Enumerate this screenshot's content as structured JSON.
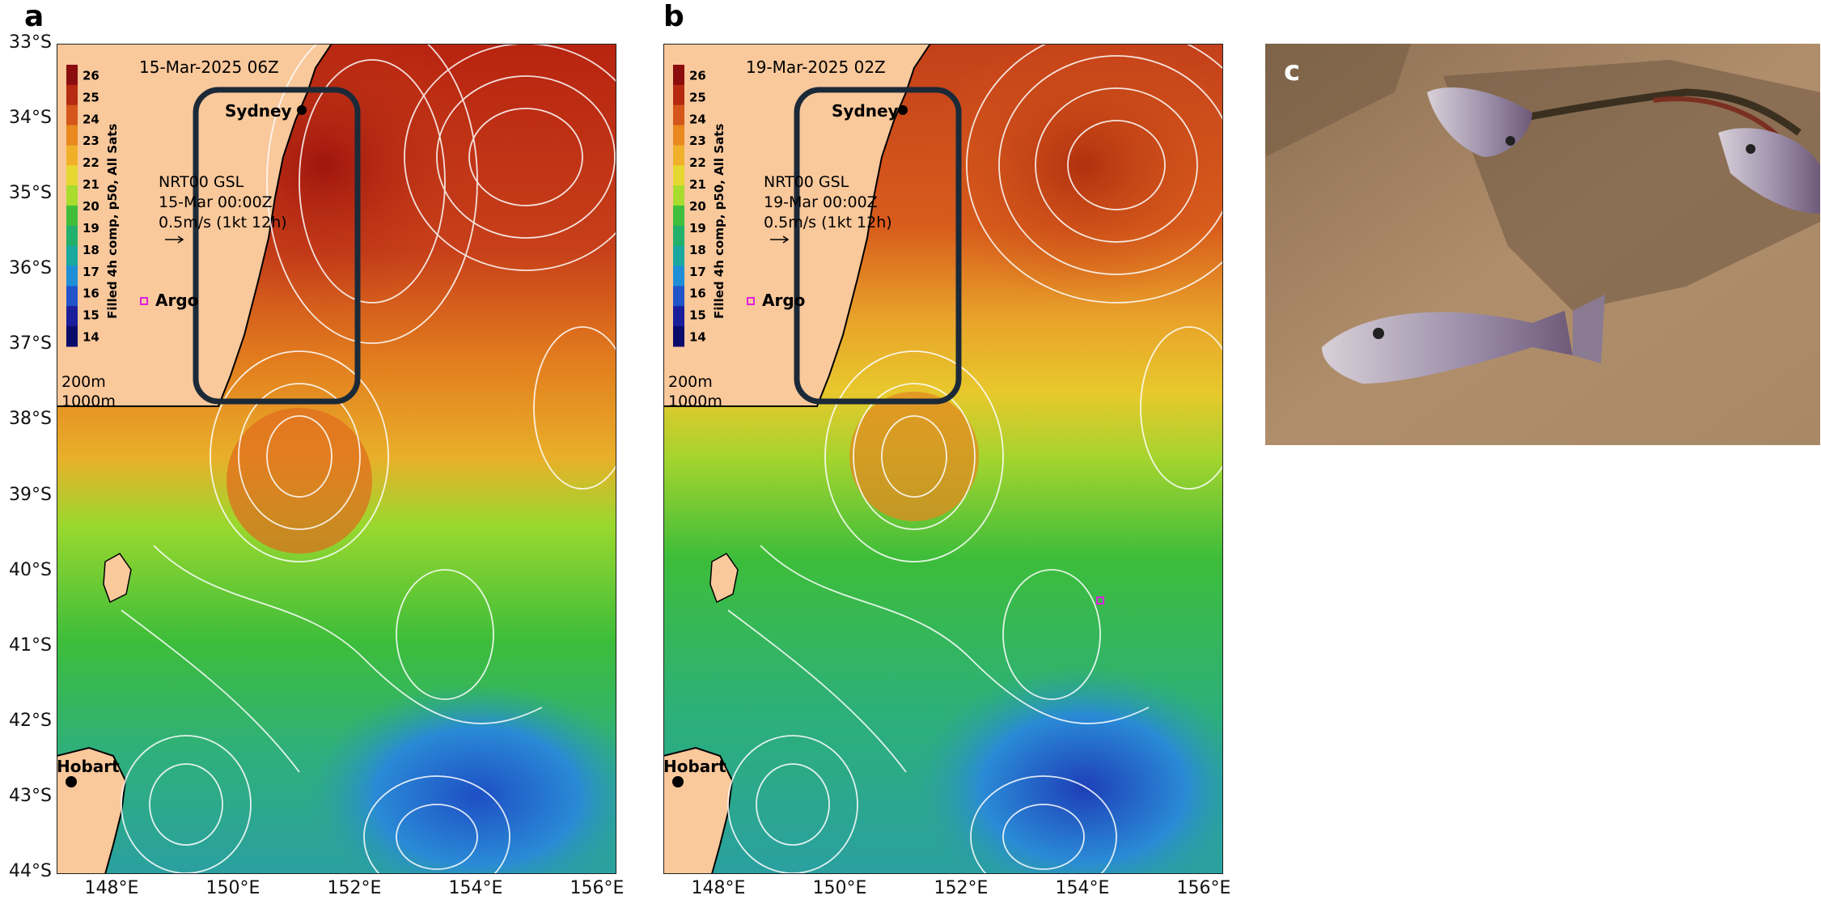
{
  "figure": {
    "panels": [
      {
        "letter": "a",
        "timestamp": "15-Mar-2025 06Z",
        "colorbar_label": "Filled 4h comp, p50, All Sats",
        "legend_lines": [
          "NRT00 GSL",
          "15-Mar 00:00Z",
          "0.5m/s (1kt 12h)"
        ]
      },
      {
        "letter": "b",
        "timestamp": "19-Mar-2025 02Z",
        "colorbar_label": "Filled 4h comp, p50, All Sats",
        "legend_lines": [
          "NRT00 GSL",
          "19-Mar 00:00Z",
          "0.5m/s (1kt 12h)"
        ]
      }
    ],
    "photo_letter": "c",
    "colorbar_ticks": [
      "26",
      "25",
      "24",
      "23",
      "22",
      "21",
      "20",
      "19",
      "18",
      "17",
      "16",
      "15",
      "14"
    ],
    "colorbar_colors": [
      "#8b0d0d",
      "#b52a10",
      "#d4561a",
      "#e8881f",
      "#f0b02a",
      "#e6d830",
      "#a8dc2e",
      "#3fbf3c",
      "#22b06a",
      "#1aa7a0",
      "#1e8fd6",
      "#2154c8",
      "#1a1e9a",
      "#0a0a6a"
    ],
    "place_labels": {
      "sydney": "Sydney",
      "hobart": "Hobart",
      "argo": "Argo"
    },
    "depth_labels": [
      "200m",
      "1000m"
    ],
    "lat_labels": [
      "33°S",
      "34°S",
      "35°S",
      "36°S",
      "37°S",
      "38°S",
      "39°S",
      "40°S",
      "41°S",
      "42°S",
      "43°S",
      "44°S"
    ],
    "lon_labels": [
      "148°E",
      "150°E",
      "152°E",
      "154°E",
      "156°E"
    ],
    "colors": {
      "land": "#f9c89b",
      "box": "#1c2a38",
      "argo": "#e020e0",
      "contour": "#ffffff"
    }
  }
}
